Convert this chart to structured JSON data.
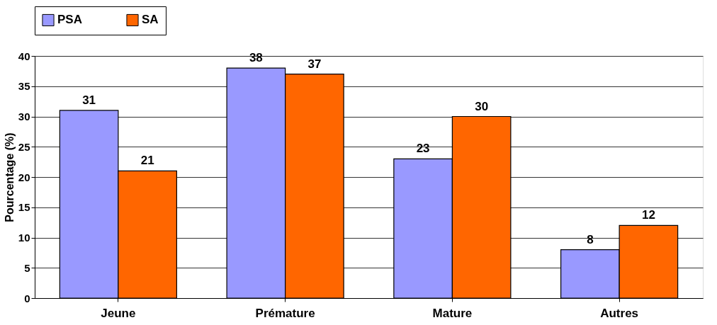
{
  "chart_data": {
    "type": "bar",
    "ylabel": "Pourcentage (%)",
    "categories": [
      "Jeune",
      "Prémature",
      "Mature",
      "Autres"
    ],
    "series": [
      {
        "name": "PSA",
        "color": "#9999ff",
        "values": [
          31,
          38,
          23,
          8
        ]
      },
      {
        "name": "SA",
        "color": "#ff6600",
        "values": [
          21,
          37,
          30,
          12
        ]
      }
    ],
    "ylim": [
      0,
      40
    ],
    "yticks": [
      0,
      5,
      10,
      15,
      20,
      25,
      30,
      35,
      40
    ],
    "grid": "y",
    "legend": "top",
    "data_labels": true
  }
}
